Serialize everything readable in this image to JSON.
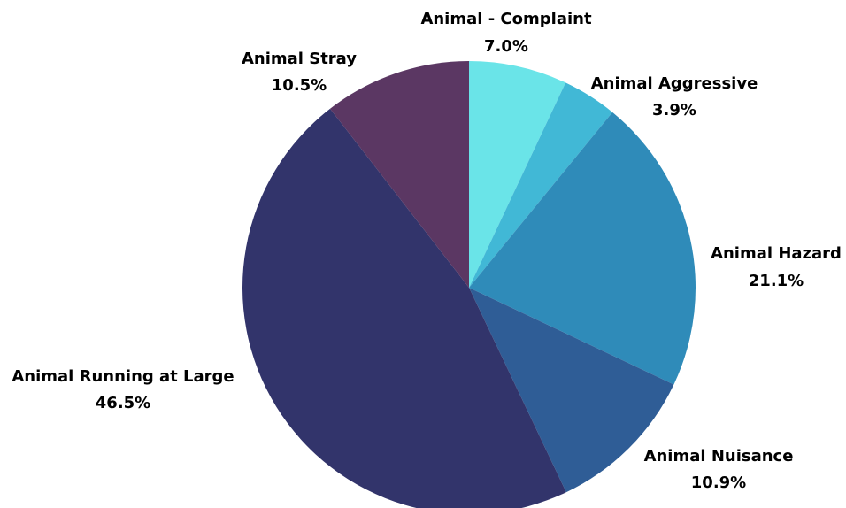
{
  "chart_data": {
    "type": "pie",
    "title": "",
    "slices": [
      {
        "name": "Animal - Complaint",
        "value": 7.0,
        "label": "7.0%",
        "color": "#6ae4e8"
      },
      {
        "name": "Animal Aggressive",
        "value": 3.9,
        "label": "3.9%",
        "color": "#41b8d6"
      },
      {
        "name": "Animal Hazard",
        "value": 21.1,
        "label": "21.1%",
        "color": "#2f8bb9"
      },
      {
        "name": "Animal Nuisance",
        "value": 10.9,
        "label": "10.9%",
        "color": "#2f5d96"
      },
      {
        "name": "Animal Running at Large",
        "value": 46.5,
        "label": "46.5%",
        "color": "#32346b"
      },
      {
        "name": "Animal Stray",
        "value": 10.5,
        "label": "10.5%",
        "color": "#5b3763"
      }
    ],
    "start_angle": "12 o'clock",
    "direction": "clockwise",
    "legend": "none",
    "labels": "outside"
  }
}
